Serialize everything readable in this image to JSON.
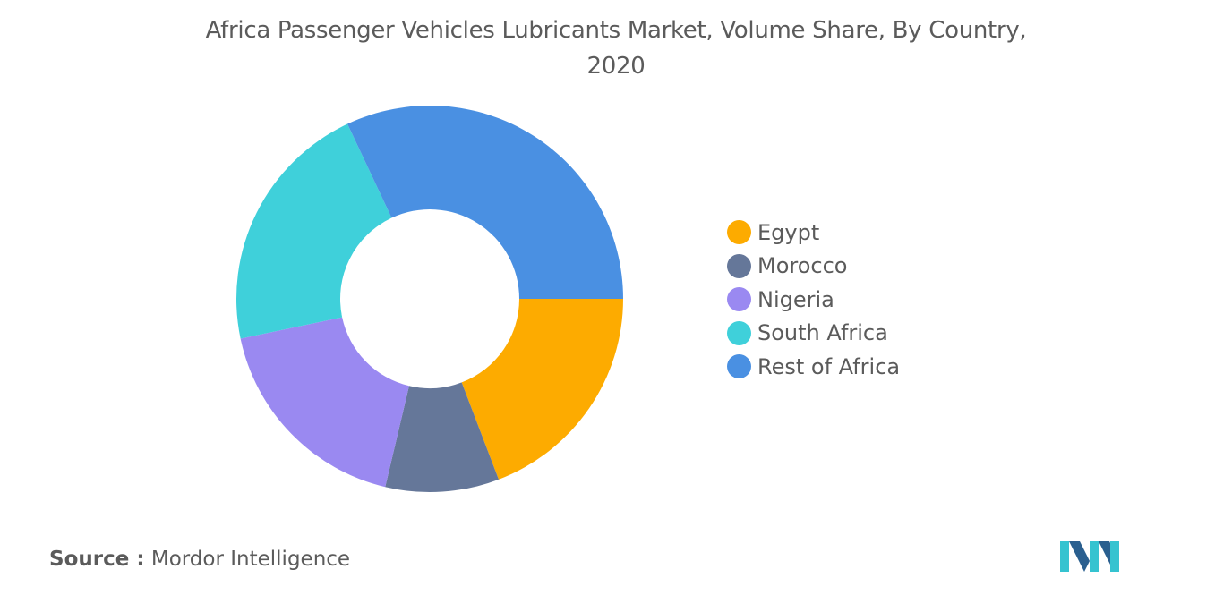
{
  "colors": {
    "Egypt": "#FDAB00",
    "Morocco": "#657799",
    "Nigeria": "#9A89F1",
    "South Africa": "#3FD0DA",
    "Rest of Africa": "#4A90E2",
    "logo_dark": "#2a5f8f",
    "logo_light": "#35c3d0"
  },
  "chart_data": {
    "type": "pie",
    "title_line1": "Africa Passenger Vehicles Lubricants Market, Volume Share, By Country,",
    "title_line2": "2020",
    "labels": [
      "Egypt",
      "Morocco",
      "Nigeria",
      "South Africa",
      "Rest of Africa"
    ],
    "values": [
      19.2,
      9.5,
      18.0,
      21.3,
      32.0
    ],
    "legend_position": "right",
    "donut": true
  },
  "source": {
    "label": "Source :",
    "value": "Mordor Intelligence"
  },
  "logo": {
    "icon": "mordor-intelligence-logo-icon"
  }
}
